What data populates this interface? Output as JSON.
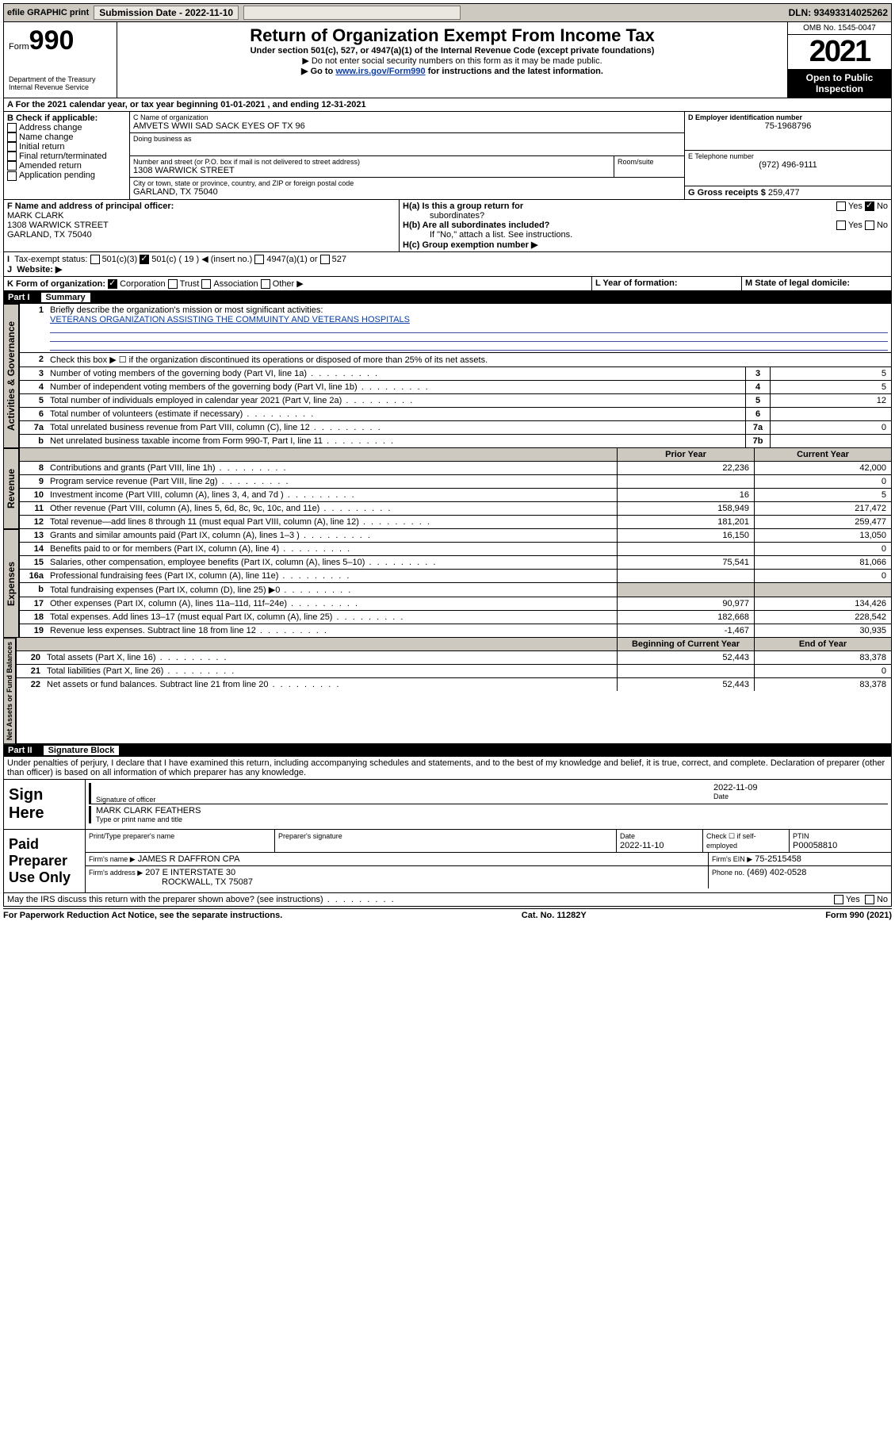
{
  "topbar": {
    "efile": "efile GRAPHIC print",
    "submission_lbl": "Submission Date - 2022-11-10",
    "dln_lbl": "DLN: 93493314025262"
  },
  "header": {
    "form_word": "Form",
    "form_num": "990",
    "dept": "Department of the Treasury",
    "irs": "Internal Revenue Service",
    "title": "Return of Organization Exempt From Income Tax",
    "sub1": "Under section 501(c), 527, or 4947(a)(1) of the Internal Revenue Code (except private foundations)",
    "sub2": "▶ Do not enter social security numbers on this form as it may be made public.",
    "sub3_a": "▶ Go to ",
    "sub3_link": "www.irs.gov/Form990",
    "sub3_b": " for instructions and the latest information.",
    "omb": "OMB No. 1545-0047",
    "year": "2021",
    "open": "Open to Public Inspection"
  },
  "A": {
    "line": "For the 2021 calendar year, or tax year beginning 01-01-2021   , and ending 12-31-2021"
  },
  "B": {
    "hdr": "B Check if applicable:",
    "opts": [
      "Address change",
      "Name change",
      "Initial return",
      "Final return/terminated",
      "Amended return",
      "Application pending"
    ]
  },
  "C": {
    "name_lbl": "C Name of organization",
    "name": "AMVETS WWII SAD SACK EYES OF TX 96",
    "dba_lbl": "Doing business as",
    "street_lbl": "Number and street (or P.O. box if mail is not delivered to street address)",
    "room_lbl": "Room/suite",
    "street": "1308 WARWICK STREET",
    "city_lbl": "City or town, state or province, country, and ZIP or foreign postal code",
    "city": "GARLAND, TX  75040"
  },
  "D": {
    "lbl": "D Employer identification number",
    "val": "75-1968796"
  },
  "E": {
    "lbl": "E Telephone number",
    "val": "(972) 496-9111"
  },
  "G": {
    "lbl": "G Gross receipts $",
    "val": "259,477"
  },
  "F": {
    "lbl": "F  Name and address of principal officer:",
    "name": "MARK CLARK",
    "street": "1308 WARWICK STREET",
    "city": "GARLAND, TX  75040"
  },
  "H": {
    "a": "H(a)  Is this a group return for",
    "a2": "subordinates?",
    "b": "H(b)  Are all subordinates included?",
    "b2": "If \"No,\" attach a list. See instructions.",
    "c": "H(c)  Group exemption number ▶",
    "yes": "Yes",
    "no": "No"
  },
  "I": {
    "lbl": "Tax-exempt status:",
    "c3": "501(c)(3)",
    "c": "501(c) ( 19 ) ◀ (insert no.)",
    "a4947": "4947(a)(1) or",
    "s527": "527"
  },
  "J": {
    "lbl": "Website: ▶"
  },
  "K": {
    "lbl": "K Form of organization:",
    "corp": "Corporation",
    "trust": "Trust",
    "assoc": "Association",
    "other": "Other ▶"
  },
  "L": {
    "lbl": "L Year of formation:"
  },
  "M": {
    "lbl": "M State of legal domicile:"
  },
  "part1": {
    "num": "Part I",
    "lbl": "Summary"
  },
  "summary": {
    "l1a": "Briefly describe the organization's mission or most significant activities:",
    "l1b": "VETERANS ORGANIZATION ASSISTING THE COMMUINTY AND VETERANS HOSPITALS",
    "l2": "Check this box ▶ ☐  if the organization discontinued its operations or disposed of more than 25% of its net assets.",
    "rows_gov": [
      {
        "n": "3",
        "d": "Number of voting members of the governing body (Part VI, line 1a)",
        "b": "3",
        "v": "5"
      },
      {
        "n": "4",
        "d": "Number of independent voting members of the governing body (Part VI, line 1b)",
        "b": "4",
        "v": "5"
      },
      {
        "n": "5",
        "d": "Total number of individuals employed in calendar year 2021 (Part V, line 2a)",
        "b": "5",
        "v": "12"
      },
      {
        "n": "6",
        "d": "Total number of volunteers (estimate if necessary)",
        "b": "6",
        "v": ""
      },
      {
        "n": "7a",
        "d": "Total unrelated business revenue from Part VIII, column (C), line 12",
        "b": "7a",
        "v": "0"
      },
      {
        "n": "b",
        "d": "Net unrelated business taxable income from Form 990-T, Part I, line 11",
        "b": "7b",
        "v": ""
      }
    ],
    "hdr_prior": "Prior Year",
    "hdr_curr": "Current Year",
    "rows_rev": [
      {
        "n": "8",
        "d": "Contributions and grants (Part VIII, line 1h)",
        "p": "22,236",
        "c": "42,000"
      },
      {
        "n": "9",
        "d": "Program service revenue (Part VIII, line 2g)",
        "p": "",
        "c": "0"
      },
      {
        "n": "10",
        "d": "Investment income (Part VIII, column (A), lines 3, 4, and 7d )",
        "p": "16",
        "c": "5"
      },
      {
        "n": "11",
        "d": "Other revenue (Part VIII, column (A), lines 5, 6d, 8c, 9c, 10c, and 11e)",
        "p": "158,949",
        "c": "217,472"
      },
      {
        "n": "12",
        "d": "Total revenue—add lines 8 through 11 (must equal Part VIII, column (A), line 12)",
        "p": "181,201",
        "c": "259,477"
      }
    ],
    "rows_exp": [
      {
        "n": "13",
        "d": "Grants and similar amounts paid (Part IX, column (A), lines 1–3 )",
        "p": "16,150",
        "c": "13,050"
      },
      {
        "n": "14",
        "d": "Benefits paid to or for members (Part IX, column (A), line 4)",
        "p": "",
        "c": "0"
      },
      {
        "n": "15",
        "d": "Salaries, other compensation, employee benefits (Part IX, column (A), lines 5–10)",
        "p": "75,541",
        "c": "81,066"
      },
      {
        "n": "16a",
        "d": "Professional fundraising fees (Part IX, column (A), line 11e)",
        "p": "",
        "c": "0"
      },
      {
        "n": "b",
        "d": "Total fundraising expenses (Part IX, column (D), line 25) ▶0",
        "p": "—shade—",
        "c": "—shade—"
      },
      {
        "n": "17",
        "d": "Other expenses (Part IX, column (A), lines 11a–11d, 11f–24e)",
        "p": "90,977",
        "c": "134,426"
      },
      {
        "n": "18",
        "d": "Total expenses. Add lines 13–17 (must equal Part IX, column (A), line 25)",
        "p": "182,668",
        "c": "228,542"
      },
      {
        "n": "19",
        "d": "Revenue less expenses. Subtract line 18 from line 12",
        "p": "-1,467",
        "c": "30,935"
      }
    ],
    "hdr_beg": "Beginning of Current Year",
    "hdr_end": "End of Year",
    "rows_net": [
      {
        "n": "20",
        "d": "Total assets (Part X, line 16)",
        "p": "52,443",
        "c": "83,378"
      },
      {
        "n": "21",
        "d": "Total liabilities (Part X, line 26)",
        "p": "",
        "c": "0"
      },
      {
        "n": "22",
        "d": "Net assets or fund balances. Subtract line 21 from line 20",
        "p": "52,443",
        "c": "83,378"
      }
    ]
  },
  "vtabs": {
    "gov": "Activities & Governance",
    "rev": "Revenue",
    "exp": "Expenses",
    "net": "Net Assets or Fund Balances"
  },
  "part2": {
    "num": "Part II",
    "lbl": "Signature Block"
  },
  "penalty": "Under penalties of perjury, I declare that I have examined this return, including accompanying schedules and statements, and to the best of my knowledge and belief, it is true, correct, and complete. Declaration of preparer (other than officer) is based on all information of which preparer has any knowledge.",
  "sign": {
    "here": "Sign Here",
    "sig_lbl": "Signature of officer",
    "date_lbl": "Date",
    "date": "2022-11-09",
    "name": "MARK CLARK FEATHERS",
    "name_lbl": "Type or print name and title"
  },
  "paid": {
    "lbl": "Paid Preparer Use Only",
    "r1": {
      "c1": "Print/Type preparer's name",
      "c2": "Preparer's signature",
      "c3": "Date",
      "c3v": "2022-11-10",
      "c4": "Check ☐ if self-employed",
      "c5": "PTIN",
      "c5v": "P00058810"
    },
    "r2": {
      "c1": "Firm's name    ▶",
      "v": "JAMES R DAFFRON CPA",
      "c2": "Firm's EIN ▶",
      "c2v": "75-2515458"
    },
    "r3": {
      "c1": "Firm's address ▶",
      "v1": "207 E INTERSTATE 30",
      "v2": "ROCKWALL, TX  75087",
      "c2": "Phone no.",
      "c2v": "(469) 402-0528"
    }
  },
  "discuss": "May the IRS discuss this return with the preparer shown above? (see instructions)",
  "footer": {
    "l": "For Paperwork Reduction Act Notice, see the separate instructions.",
    "m": "Cat. No. 11282Y",
    "r": "Form 990 (2021)"
  }
}
